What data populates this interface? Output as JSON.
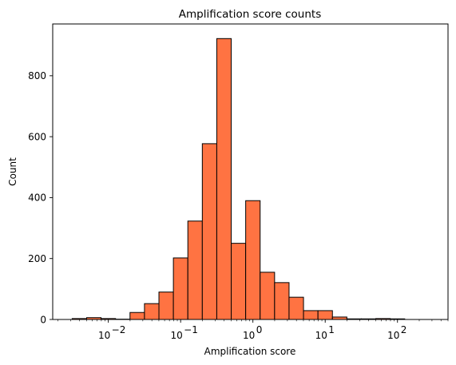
{
  "chart_data": {
    "type": "bar",
    "title": "Amplification score counts",
    "xlabel": "Amplification score",
    "ylabel": "Count",
    "x_scale": "log",
    "xlim": [
      0.0017,
      500
    ],
    "ylim": [
      0,
      970
    ],
    "grid": false,
    "bar_color": "#ff7342",
    "edge_color": "#000000",
    "x_ticks": [
      {
        "value": 0.01,
        "base": "10",
        "exp": "−2"
      },
      {
        "value": 0.1,
        "base": "10",
        "exp": "−1"
      },
      {
        "value": 1,
        "base": "10",
        "exp": "0"
      },
      {
        "value": 10,
        "base": "10",
        "exp": "1"
      },
      {
        "value": 100,
        "base": "10",
        "exp": "2"
      }
    ],
    "y_ticks": [
      0,
      200,
      400,
      600,
      800
    ],
    "bins": [
      {
        "x0": 0.00316,
        "x1": 0.00501,
        "count": 3
      },
      {
        "x0": 0.00501,
        "x1": 0.00794,
        "count": 6
      },
      {
        "x0": 0.00794,
        "x1": 0.01259,
        "count": 3
      },
      {
        "x0": 0.01259,
        "x1": 0.01995,
        "count": 1
      },
      {
        "x0": 0.01995,
        "x1": 0.03162,
        "count": 23
      },
      {
        "x0": 0.03162,
        "x1": 0.05012,
        "count": 52
      },
      {
        "x0": 0.05012,
        "x1": 0.07943,
        "count": 90
      },
      {
        "x0": 0.07943,
        "x1": 0.12589,
        "count": 202
      },
      {
        "x0": 0.12589,
        "x1": 0.19953,
        "count": 323
      },
      {
        "x0": 0.19953,
        "x1": 0.31623,
        "count": 577
      },
      {
        "x0": 0.31623,
        "x1": 0.50119,
        "count": 922
      },
      {
        "x0": 0.50119,
        "x1": 0.79433,
        "count": 250
      },
      {
        "x0": 0.79433,
        "x1": 1.25893,
        "count": 390
      },
      {
        "x0": 1.25893,
        "x1": 1.99526,
        "count": 155
      },
      {
        "x0": 1.99526,
        "x1": 3.16228,
        "count": 121
      },
      {
        "x0": 3.16228,
        "x1": 5.01187,
        "count": 73
      },
      {
        "x0": 5.01187,
        "x1": 7.94328,
        "count": 29
      },
      {
        "x0": 7.94328,
        "x1": 12.5893,
        "count": 29
      },
      {
        "x0": 12.5893,
        "x1": 19.9526,
        "count": 8
      },
      {
        "x0": 19.9526,
        "x1": 31.6228,
        "count": 2
      },
      {
        "x0": 31.6228,
        "x1": 50.1187,
        "count": 2
      },
      {
        "x0": 50.1187,
        "x1": 79.4328,
        "count": 3
      },
      {
        "x0": 79.4328,
        "x1": 125.893,
        "count": 2
      }
    ]
  }
}
